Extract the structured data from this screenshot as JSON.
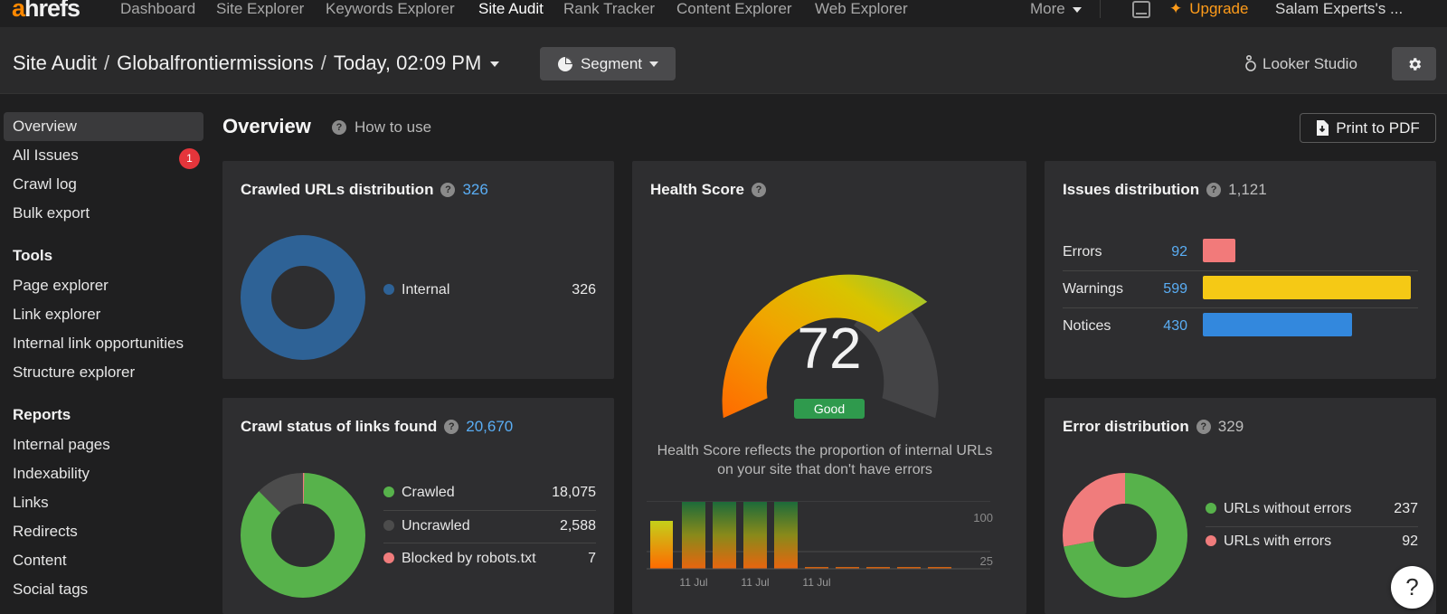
{
  "logo": {
    "first": "a",
    "rest": "hrefs"
  },
  "nav": {
    "items": [
      "Dashboard",
      "Site Explorer",
      "Keywords Explorer",
      "Site Audit",
      "Rank Tracker",
      "Content Explorer",
      "Web Explorer"
    ],
    "active": "Site Audit",
    "more": "More",
    "upgrade": "Upgrade",
    "account": "Salam Experts's ..."
  },
  "header": {
    "crumb_root": "Site Audit",
    "crumb_project": "Globalfrontiermissions",
    "crumb_crawl": "Today, 02:09 PM",
    "segment": "Segment",
    "looker": "Looker Studio"
  },
  "sidebar": {
    "items_top": [
      "Overview",
      "All Issues",
      "Crawl log",
      "Bulk export"
    ],
    "all_issues_badge": "1",
    "tools_heading": "Tools",
    "tools": [
      "Page explorer",
      "Link explorer",
      "Internal link opportunities",
      "Structure explorer"
    ],
    "reports_heading": "Reports",
    "reports": [
      "Internal pages",
      "Indexability",
      "Links",
      "Redirects",
      "Content",
      "Social tags"
    ]
  },
  "main": {
    "title": "Overview",
    "how_to": "How to use",
    "print": "Print to PDF"
  },
  "crawled_urls": {
    "title": "Crawled URLs distribution",
    "count": "326",
    "legend": [
      {
        "label": "Internal",
        "value": "326",
        "color": "#2e6296"
      }
    ]
  },
  "crawl_status": {
    "title": "Crawl status of links found",
    "count": "20,670",
    "legend": [
      {
        "label": "Crawled",
        "value": "18,075",
        "color": "#57b24b",
        "num": 18075
      },
      {
        "label": "Uncrawled",
        "value": "2,588",
        "color": "#4c4c4c",
        "num": 2588
      },
      {
        "label": "Blocked by robots.txt",
        "value": "7",
        "color": "#f07c7c",
        "num": 7
      }
    ]
  },
  "health": {
    "title": "Health Score",
    "score": "72",
    "status": "Good",
    "description": "Health Score reflects the proportion of internal URLs on your site that don't have errors",
    "axis_labels": [
      "100",
      "25"
    ],
    "x_labels": [
      "11 Jul",
      "11 Jul",
      "11 Jul"
    ]
  },
  "issues": {
    "title": "Issues distribution",
    "count": "1,121",
    "rows": [
      {
        "label": "Errors",
        "value": "92",
        "num": 92,
        "color": "#f27a7a"
      },
      {
        "label": "Warnings",
        "value": "599",
        "num": 599,
        "color": "#f5c915"
      },
      {
        "label": "Notices",
        "value": "430",
        "num": 430,
        "color": "#3388dd"
      }
    ]
  },
  "errors": {
    "title": "Error distribution",
    "count": "329",
    "legend": [
      {
        "label": "URLs without errors",
        "value": "237",
        "color": "#57b24b",
        "num": 237
      },
      {
        "label": "URLs with errors",
        "value": "92",
        "color": "#f07c7c",
        "num": 92
      }
    ]
  },
  "help": "?"
}
